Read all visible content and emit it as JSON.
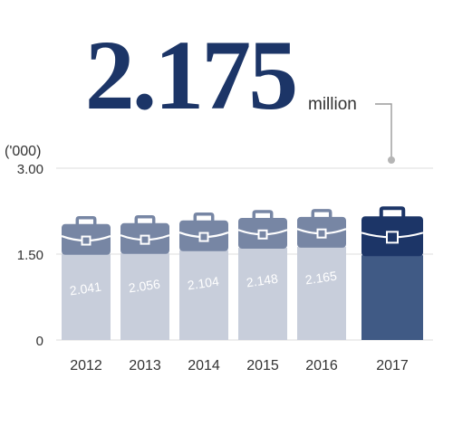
{
  "headline": {
    "value": "2.175",
    "unit": "million"
  },
  "colors": {
    "navy": "#1c3567",
    "bar_light": "#c8cedb",
    "bar_cap": "#7786a4",
    "bar_highlight_body": "#405a85",
    "bar_highlight_cap": "#1c3567",
    "axis_text": "#333333",
    "grid": "#dddddd",
    "leader": "#9a9a9a",
    "value_label": "#ffffff"
  },
  "chart_data": {
    "type": "bar",
    "ylabel": "('000)",
    "ylim": [
      0,
      3.0
    ],
    "yticks": [
      "0",
      "1.50",
      "3.00"
    ],
    "categories": [
      "2012",
      "2013",
      "2014",
      "2015",
      "2016",
      "2017"
    ],
    "values": [
      2.041,
      2.056,
      2.104,
      2.148,
      2.165,
      2.175
    ],
    "value_labels": [
      "2.041",
      "2.056",
      "2.104",
      "2.148",
      "2.165",
      ""
    ],
    "highlight_index": 5,
    "icon": "briefcase-icon",
    "grid": true
  }
}
